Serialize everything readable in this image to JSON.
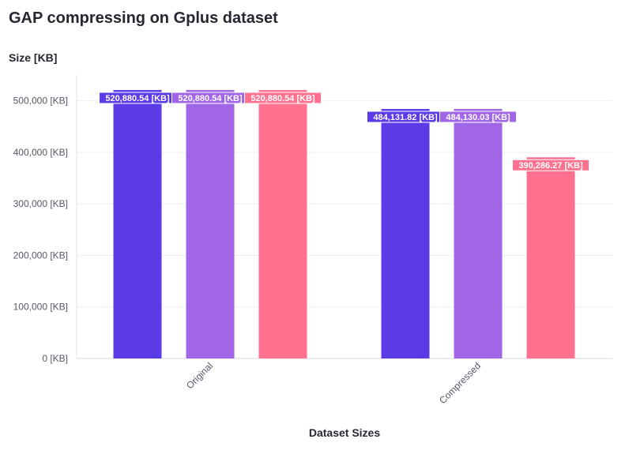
{
  "chart_data": {
    "type": "bar",
    "title": "GAP compressing on Gplus dataset",
    "xlabel": "Dataset Sizes",
    "ylabel": "Size [KB]",
    "categories": [
      "Original",
      "Compressed"
    ],
    "series": [
      {
        "color": "#5a3be6",
        "values": [
          520880.54,
          484131.82
        ],
        "labels": [
          "520,880.54 [KB]",
          "484,131.82 [KB]"
        ]
      },
      {
        "color": "#a066e6",
        "values": [
          520880.54,
          484130.03
        ],
        "labels": [
          "520,880.54 [KB]",
          "484,130.03 [KB]"
        ]
      },
      {
        "color": "#ff718e",
        "values": [
          520880.54,
          390286.27
        ],
        "labels": [
          "520,880.54 [KB]",
          "390,286.27 [KB]"
        ]
      }
    ],
    "ylim": [
      0,
      550000
    ],
    "yticks": [
      0,
      100000,
      200000,
      300000,
      400000,
      500000
    ],
    "ytick_labels": [
      "0 [KB]",
      "100,000 [KB]",
      "200,000 [KB]",
      "300,000 [KB]",
      "400,000 [KB]",
      "500,000 [KB]"
    ],
    "grid": true,
    "legend": "none"
  }
}
